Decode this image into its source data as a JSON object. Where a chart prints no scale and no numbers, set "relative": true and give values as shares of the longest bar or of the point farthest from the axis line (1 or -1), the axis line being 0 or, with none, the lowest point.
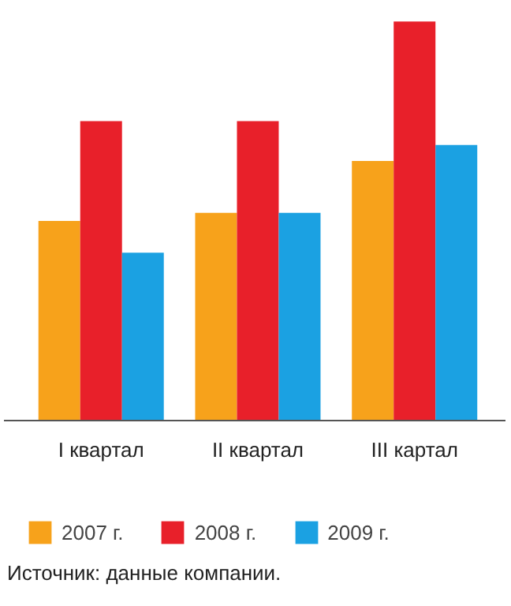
{
  "chart_data": {
    "type": "bar",
    "relative": true,
    "categories": [
      "I квартал",
      "II квартал",
      "III картал"
    ],
    "series": [
      {
        "name": "2007 г.",
        "color": "#f7a21b",
        "values": [
          0.5,
          0.52,
          0.65
        ]
      },
      {
        "name": "2008 г.",
        "color": "#e8202a",
        "values": [
          0.75,
          0.75,
          1
        ]
      },
      {
        "name": "2009 г.",
        "color": "#1ba1e2",
        "values": [
          0.42,
          0.52,
          0.69
        ]
      }
    ],
    "legend": "bottom",
    "annotations": [
      "Источник: данные компании."
    ]
  }
}
